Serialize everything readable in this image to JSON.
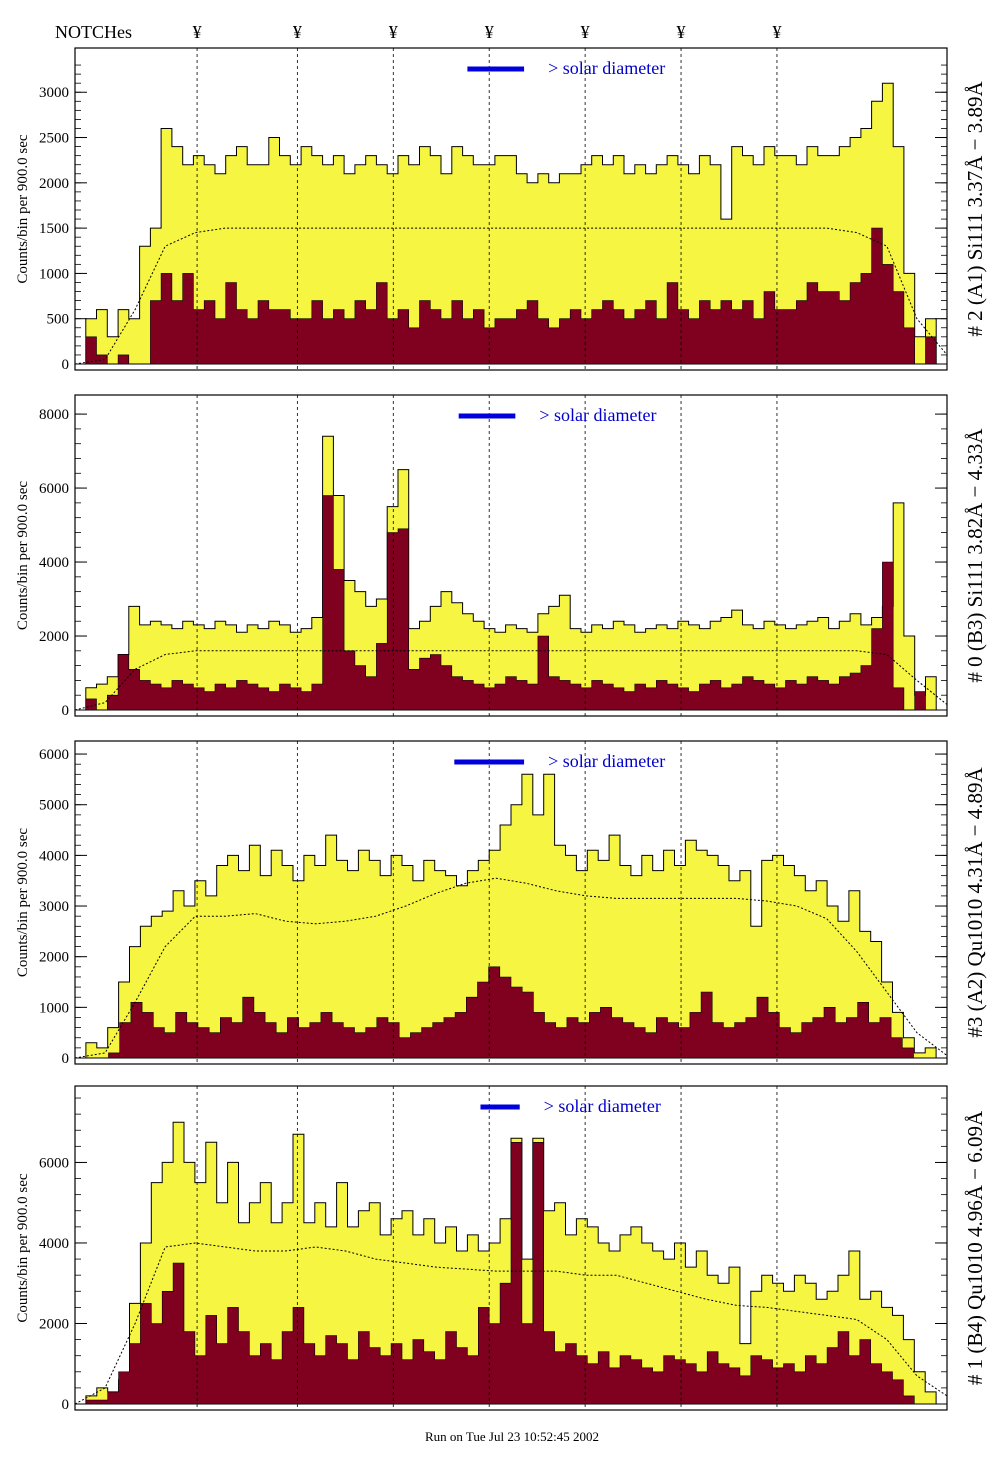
{
  "header": {
    "notches_label": "NOTCHes",
    "notch_symbol": "¥"
  },
  "footer": {
    "run_text": "Run on Tue Jul 23 10:52:45 2002"
  },
  "colors": {
    "fill_high": "#f5f542",
    "fill_low": "#800020",
    "solar_bar": "#0000dd",
    "annotation_blue": "#1a1acc",
    "annotation_black": "#000000"
  },
  "chart_data": [
    {
      "type": "area",
      "ylabel": "Counts/bin per   900.0 sec",
      "right_label": "# 2 (A1) Si111  3.37Å − 3.89Å",
      "solar_label": "> solar diameter",
      "ylim": [
        0,
        3400
      ],
      "yticks": [
        0,
        500,
        1000,
        1500,
        2000,
        2500,
        3000
      ],
      "series": [
        {
          "values": [
            0,
            500,
            600,
            300,
            600,
            500,
            1300,
            1500,
            2600,
            2400,
            2200,
            2300,
            2200,
            2100,
            2300,
            2400,
            2200,
            2200,
            2500,
            2300,
            2200,
            2400,
            2300,
            2200,
            2300,
            2100,
            2200,
            2300,
            2200,
            2100,
            2300,
            2200,
            2400,
            2300,
            2100,
            2400,
            2300,
            2200,
            2200,
            2300,
            2300,
            2100,
            2000,
            2100,
            2000,
            2100,
            2100,
            2200,
            2300,
            2200,
            2300,
            2100,
            2200,
            2100,
            2200,
            2300,
            2200,
            2100,
            2300,
            2200,
            1600,
            2400,
            2300,
            2200,
            2400,
            2300,
            2300,
            2200,
            2400,
            2300,
            2300,
            2400,
            2500,
            2600,
            2900,
            3100,
            2400,
            1000,
            300,
            500,
            0
          ]
        },
        {
          "values": [
            0,
            300,
            100,
            0,
            100,
            0,
            0,
            700,
            1000,
            700,
            1000,
            600,
            700,
            500,
            900,
            600,
            500,
            700,
            600,
            600,
            500,
            500,
            700,
            500,
            600,
            500,
            700,
            600,
            900,
            500,
            600,
            400,
            700,
            600,
            500,
            700,
            500,
            600,
            400,
            500,
            500,
            600,
            700,
            500,
            400,
            500,
            600,
            500,
            600,
            700,
            600,
            500,
            600,
            700,
            500,
            900,
            600,
            500,
            700,
            600,
            700,
            600,
            700,
            500,
            800,
            600,
            600,
            700,
            900,
            800,
            800,
            700,
            900,
            1000,
            1500,
            1100,
            800,
            400,
            0,
            300,
            0
          ]
        },
        {
          "values": [
            0,
            50,
            600,
            1300,
            1450,
            1500,
            1500,
            1500,
            1500,
            1500,
            1500,
            1500,
            1500,
            1500,
            1500,
            1500,
            1500,
            1500,
            1500,
            1500,
            1500,
            1500,
            1500,
            1500,
            1500,
            1500,
            1450,
            1300,
            500,
            100
          ]
        }
      ],
      "notch_fracs": [
        0.14,
        0.255,
        0.365,
        0.475,
        0.585,
        0.695,
        0.805
      ],
      "solar_bar_fracs": [
        0.45,
        0.515
      ]
    },
    {
      "type": "area",
      "ylabel": "Counts/bin per   900.0 sec",
      "right_label": "# 0 (B3) Si111  3.82Å − 4.33Å",
      "solar_label": "> solar diameter",
      "ylim": [
        0,
        8300
      ],
      "yticks": [
        0,
        2000,
        4000,
        6000,
        8000
      ],
      "series": [
        {
          "values": [
            0,
            600,
            700,
            900,
            1500,
            2800,
            2300,
            2400,
            2300,
            2200,
            2400,
            2300,
            2200,
            2400,
            2300,
            2100,
            2300,
            2200,
            2400,
            2300,
            2100,
            2200,
            2500,
            7400,
            5800,
            3500,
            3200,
            2800,
            3000,
            5500,
            6500,
            2200,
            2400,
            2800,
            3200,
            2900,
            2600,
            2400,
            2200,
            2100,
            2300,
            2200,
            2100,
            2600,
            2800,
            3100,
            2200,
            2100,
            2300,
            2200,
            2400,
            2300,
            2100,
            2200,
            2300,
            2200,
            2400,
            2300,
            2200,
            2400,
            2500,
            2700,
            2300,
            2200,
            2400,
            2300,
            2200,
            2300,
            2400,
            2500,
            2200,
            2400,
            2600,
            2300,
            2500,
            2800,
            5600,
            2000,
            400,
            900,
            0
          ]
        },
        {
          "values": [
            0,
            300,
            0,
            400,
            1500,
            1100,
            800,
            700,
            600,
            800,
            700,
            600,
            500,
            700,
            600,
            800,
            700,
            600,
            500,
            700,
            600,
            500,
            700,
            5800,
            3800,
            1600,
            1200,
            900,
            1800,
            4800,
            4900,
            1100,
            1400,
            1500,
            1200,
            900,
            800,
            700,
            600,
            700,
            900,
            800,
            700,
            2000,
            900,
            800,
            700,
            600,
            800,
            700,
            600,
            500,
            700,
            600,
            800,
            700,
            600,
            500,
            700,
            800,
            600,
            700,
            900,
            800,
            700,
            600,
            800,
            700,
            900,
            800,
            700,
            900,
            1000,
            1200,
            2200,
            4000,
            600,
            0,
            500,
            0,
            0
          ]
        },
        {
          "values": [
            0,
            200,
            1100,
            1500,
            1600,
            1600,
            1600,
            1600,
            1600,
            1600,
            1600,
            1600,
            1600,
            1600,
            1600,
            1600,
            1600,
            1600,
            1600,
            1600,
            1600,
            1600,
            1600,
            1600,
            1600,
            1600,
            1600,
            1500,
            800,
            150
          ]
        }
      ],
      "notch_fracs": [
        0.14,
        0.255,
        0.365,
        0.475,
        0.585,
        0.695,
        0.805
      ],
      "solar_bar_fracs": [
        0.44,
        0.505
      ]
    },
    {
      "type": "area",
      "ylabel": "Counts/bin per   900.0 sec",
      "right_label": "#3 (A2) Qu1010  4.31Å − 4.89Å",
      "solar_label": "> solar diameter",
      "ylim": [
        0,
        6100
      ],
      "yticks": [
        0,
        1000,
        2000,
        3000,
        4000,
        5000,
        6000
      ],
      "series": [
        {
          "values": [
            0,
            300,
            200,
            600,
            1500,
            2200,
            2600,
            2800,
            2900,
            3300,
            3000,
            3500,
            3200,
            3800,
            4000,
            3700,
            4200,
            3600,
            4100,
            3800,
            3500,
            4000,
            3800,
            4400,
            3900,
            3700,
            4100,
            3900,
            3600,
            4000,
            3800,
            3500,
            3900,
            3700,
            3600,
            3400,
            3700,
            3900,
            4100,
            4600,
            5000,
            5600,
            4800,
            5600,
            4200,
            4000,
            3700,
            4100,
            3900,
            4400,
            3800,
            3600,
            4000,
            3700,
            4100,
            3800,
            4300,
            4100,
            4000,
            3800,
            3500,
            3700,
            2600,
            3900,
            4000,
            3800,
            3600,
            3300,
            3500,
            3000,
            2700,
            3300,
            2500,
            2300,
            1500,
            900,
            400,
            100,
            200,
            0
          ]
        },
        {
          "values": [
            0,
            0,
            0,
            100,
            700,
            1100,
            900,
            600,
            500,
            900,
            700,
            600,
            500,
            800,
            700,
            1200,
            900,
            700,
            500,
            800,
            600,
            700,
            900,
            700,
            600,
            500,
            600,
            800,
            700,
            400,
            500,
            600,
            700,
            800,
            900,
            1200,
            1500,
            1800,
            1600,
            1400,
            1300,
            900,
            700,
            600,
            800,
            700,
            900,
            1000,
            800,
            700,
            600,
            500,
            800,
            700,
            600,
            900,
            1300,
            700,
            600,
            700,
            800,
            1200,
            900,
            600,
            500,
            700,
            800,
            1000,
            700,
            800,
            1100,
            700,
            800,
            400,
            200,
            0,
            0,
            0
          ]
        },
        {
          "values": [
            0,
            100,
            1100,
            2200,
            2800,
            2800,
            2850,
            2700,
            2650,
            2700,
            2800,
            3000,
            3250,
            3450,
            3550,
            3450,
            3300,
            3200,
            3150,
            3150,
            3150,
            3150,
            3150,
            3100,
            3000,
            2750,
            2100,
            1300,
            500,
            50
          ]
        }
      ],
      "notch_fracs": [
        0.14,
        0.255,
        0.365,
        0.475,
        0.585,
        0.695,
        0.805
      ],
      "solar_bar_fracs": [
        0.435,
        0.515
      ]
    },
    {
      "type": "area",
      "ylabel": "Counts/bin per   900.0 sec",
      "right_label": "# 1 (B4) Qu1010  4.96Å − 6.09Å",
      "solar_label": "> solar diameter",
      "ylim": [
        0,
        7700
      ],
      "yticks": [
        0,
        2000,
        4000,
        6000
      ],
      "series": [
        {
          "values": [
            0,
            200,
            400,
            300,
            600,
            2500,
            4000,
            5500,
            6000,
            7000,
            6000,
            5500,
            6500,
            5000,
            6000,
            4500,
            5000,
            5500,
            4500,
            5000,
            6700,
            4500,
            5000,
            4400,
            5500,
            4400,
            4800,
            5000,
            4200,
            4600,
            4800,
            4200,
            4600,
            4000,
            4400,
            3800,
            4200,
            3800,
            4000,
            4600,
            6600,
            3600,
            6600,
            4800,
            5000,
            4200,
            4600,
            4400,
            4000,
            3800,
            4200,
            4400,
            4000,
            3800,
            3600,
            4000,
            3400,
            3800,
            3200,
            3000,
            3400,
            1500,
            2800,
            3200,
            3000,
            2800,
            3200,
            3000,
            2600,
            2800,
            3200,
            3800,
            2600,
            2800,
            2400,
            2200,
            1600,
            800,
            300,
            0
          ]
        },
        {
          "values": [
            0,
            100,
            100,
            300,
            800,
            1500,
            2500,
            2000,
            2800,
            3500,
            1800,
            1200,
            2200,
            1500,
            2400,
            1800,
            1200,
            1500,
            1100,
            1800,
            2400,
            1500,
            1200,
            1700,
            1500,
            1100,
            1800,
            1400,
            1200,
            1500,
            1100,
            1600,
            1300,
            1100,
            1800,
            1400,
            1200,
            2400,
            2000,
            3000,
            6500,
            2000,
            6500,
            1800,
            1300,
            1500,
            1200,
            1000,
            1300,
            900,
            1200,
            1100,
            900,
            800,
            1200,
            1100,
            1000,
            800,
            1300,
            1000,
            900,
            700,
            1200,
            1100,
            900,
            1000,
            800,
            1200,
            1000,
            1400,
            1800,
            1200,
            1600,
            1000,
            800,
            600,
            200,
            0,
            0,
            0
          ]
        },
        {
          "values": [
            0,
            400,
            2000,
            3900,
            4000,
            3900,
            3800,
            3800,
            3900,
            3800,
            3600,
            3500,
            3400,
            3350,
            3300,
            3300,
            3300,
            3200,
            3200,
            3000,
            2800,
            2600,
            2450,
            2400,
            2300,
            2200,
            2100,
            1600,
            700,
            200
          ]
        }
      ],
      "notch_fracs": [
        0.14,
        0.255,
        0.365,
        0.475,
        0.585,
        0.695,
        0.805
      ],
      "solar_bar_fracs": [
        0.465,
        0.51
      ]
    }
  ]
}
